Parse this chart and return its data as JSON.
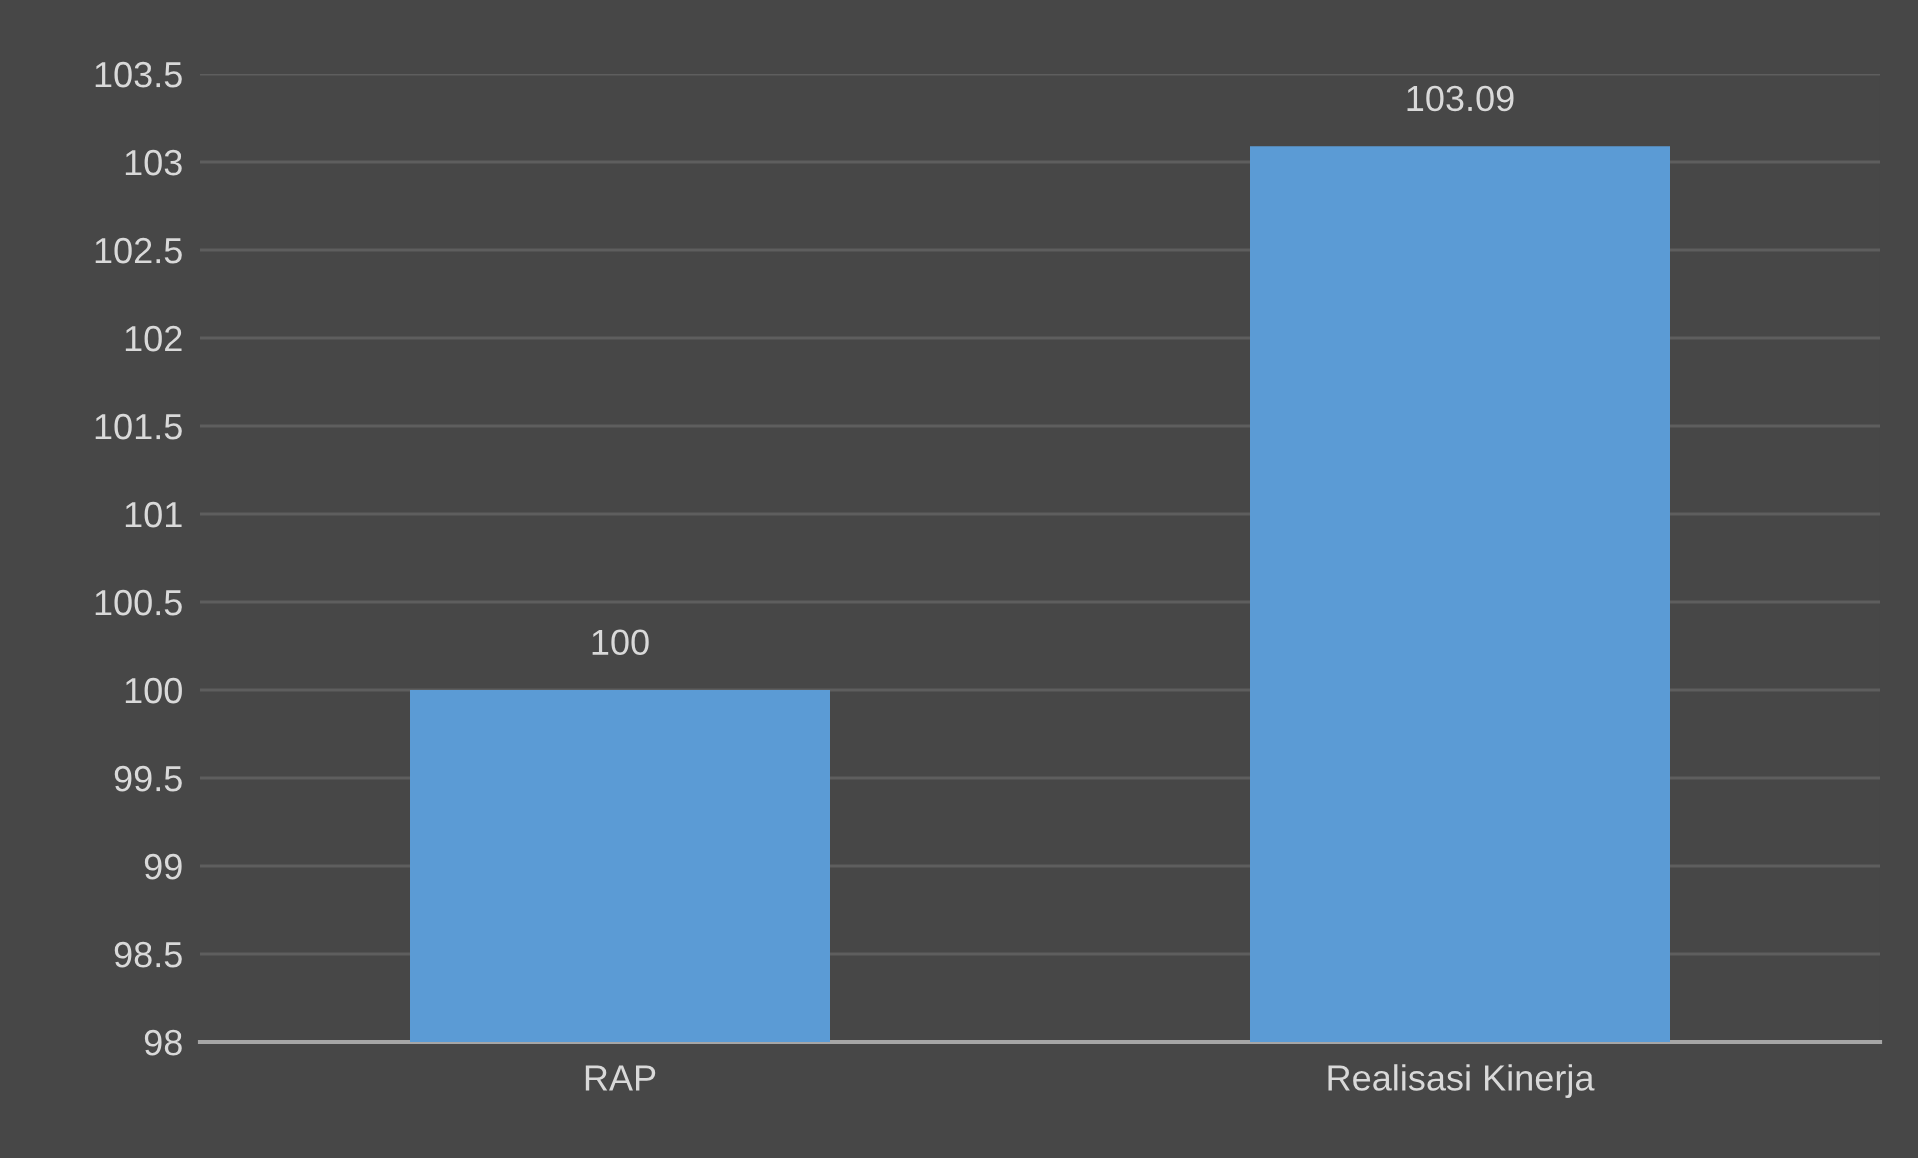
{
  "chart_data": {
    "type": "bar",
    "categories": [
      "RAP",
      "Realisasi Kinerja"
    ],
    "values": [
      100,
      103.09
    ],
    "color": "#5b9bd5",
    "ylim": [
      98,
      103.5
    ],
    "yticks": [
      98,
      98.5,
      99,
      99.5,
      100,
      100.5,
      101,
      101.5,
      102,
      102.5,
      103,
      103.5
    ],
    "grid": "y",
    "data_labels": true,
    "legend": false
  }
}
